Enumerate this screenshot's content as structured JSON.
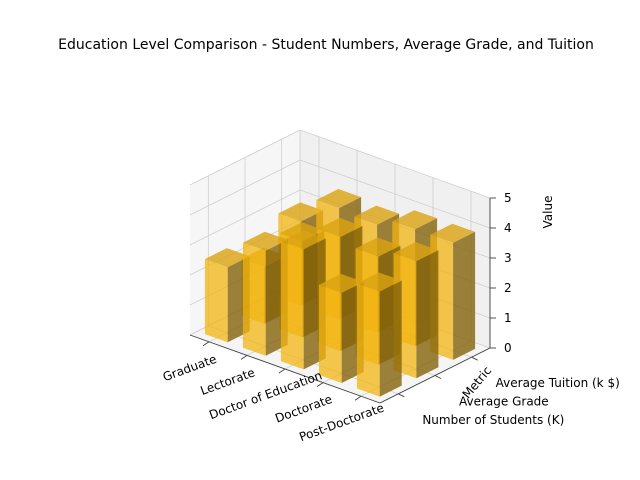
{
  "chart_data": {
    "type": "bar3d",
    "title": "Education Level Comparison - Student Numbers, Average Grade, and Tuition",
    "xlabel": "",
    "ylabel": "Metric",
    "zlabel": "Value",
    "categories": [
      "Graduate",
      "Lectorate",
      "Doctor of Education",
      "Doctorate",
      "Post-Doctorate"
    ],
    "metrics": [
      "Number of Students (K)",
      "Average Grade",
      "Average Tuition (k $)"
    ],
    "values": [
      [
        2.5,
        1.9,
        2.8
      ],
      [
        3.5,
        3.2,
        3.7
      ],
      [
        4.0,
        3.8,
        3.6
      ],
      [
        3.0,
        3.6,
        3.9
      ],
      [
        3.5,
        3.9,
        3.9
      ]
    ],
    "zlim": [
      0,
      5
    ],
    "zticks": [
      "0",
      "1",
      "2",
      "3",
      "4",
      "5"
    ],
    "grid": true,
    "bar_color": "#f2b412"
  }
}
